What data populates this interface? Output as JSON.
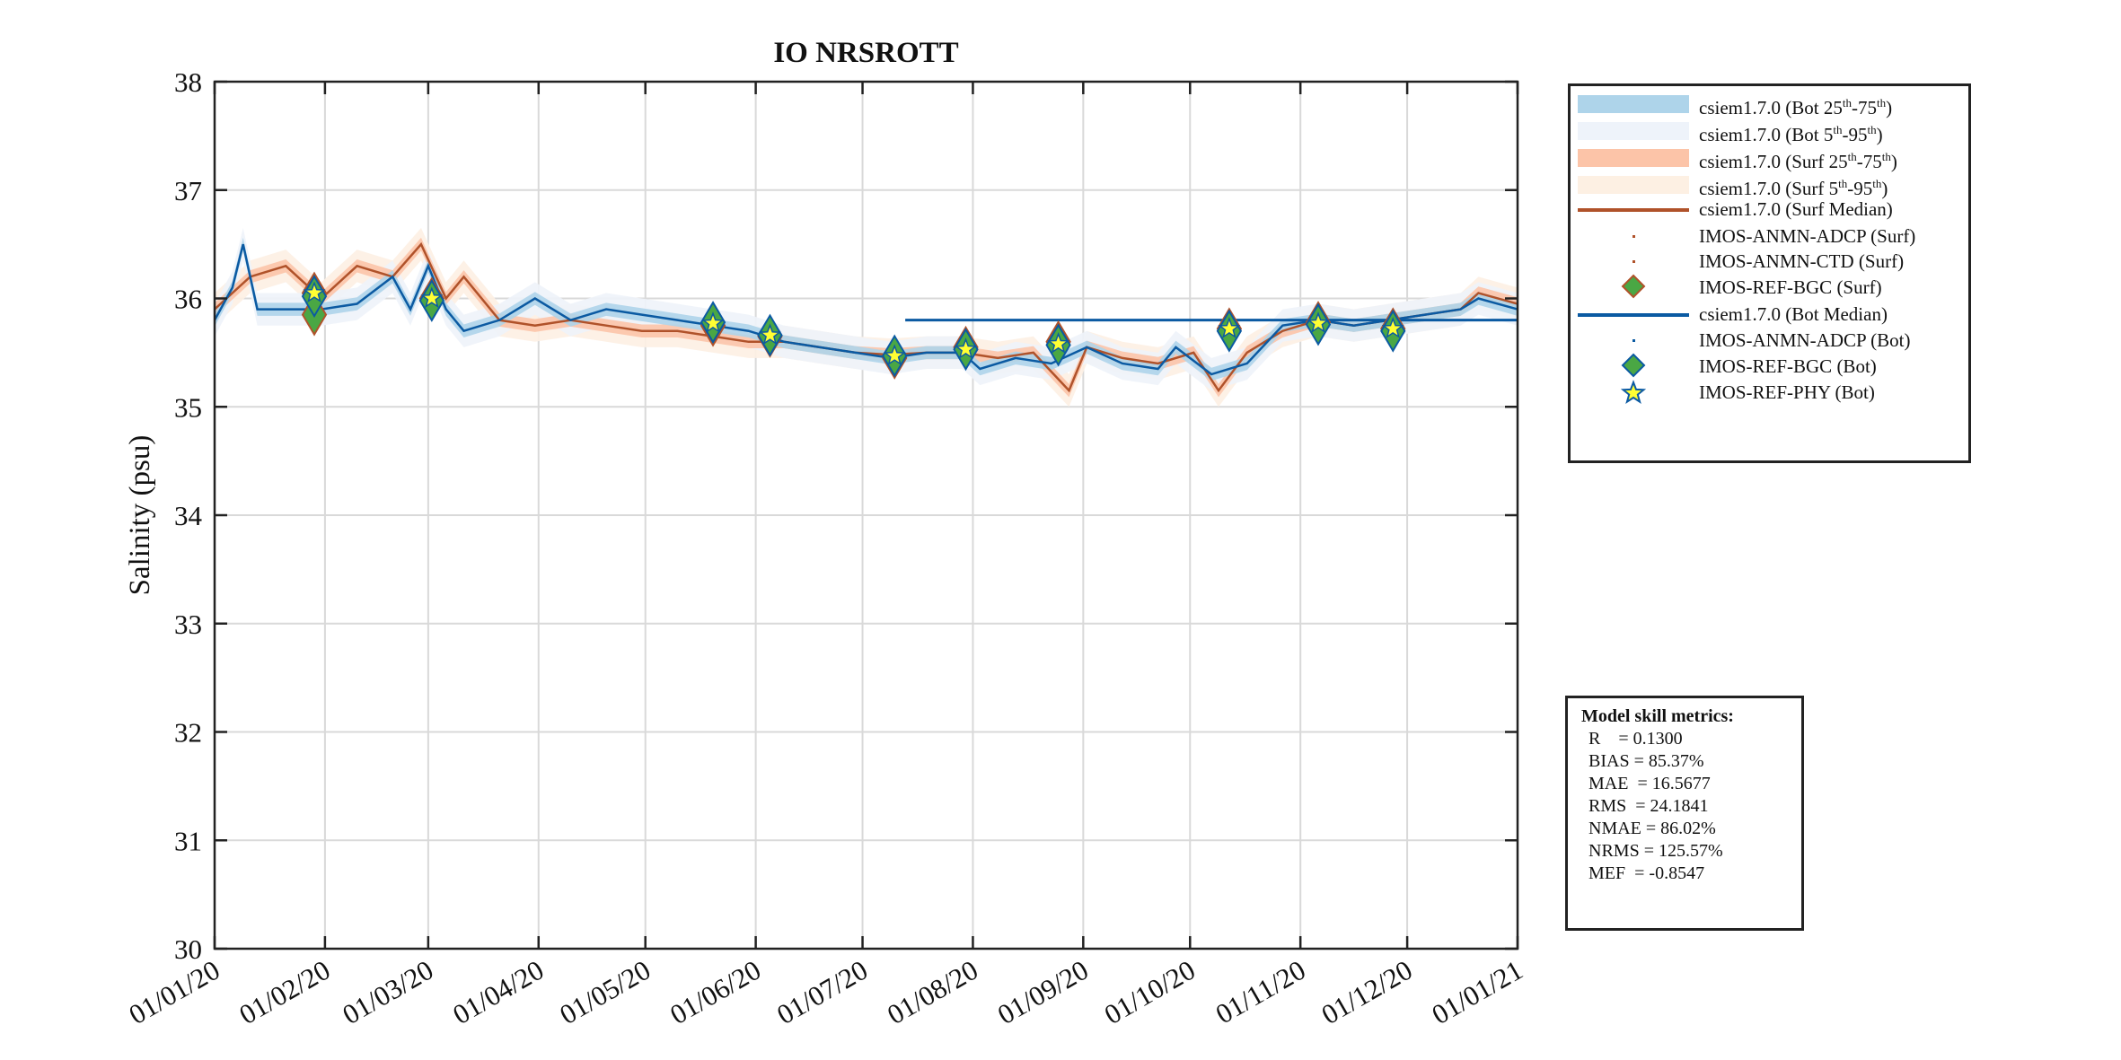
{
  "chart_data": {
    "type": "line",
    "title": "IO NRSROTT",
    "xlabel": "",
    "ylabel": "Salinity (psu)",
    "ylim": [
      30,
      38
    ],
    "yticks": [
      "30",
      "31",
      "32",
      "33",
      "34",
      "35",
      "36",
      "37",
      "38"
    ],
    "xlim_days": [
      0,
      366
    ],
    "xticks": [
      "01/01/20",
      "01/02/20",
      "01/03/20",
      "01/04/20",
      "01/05/20",
      "01/06/20",
      "01/07/20",
      "01/08/20",
      "01/09/20",
      "01/10/20",
      "01/11/20",
      "01/12/20",
      "01/01/21"
    ],
    "xtick_days": [
      0,
      31,
      60,
      91,
      121,
      152,
      182,
      213,
      244,
      274,
      305,
      335,
      366
    ],
    "grid": true,
    "legend_placement": "outside-right",
    "colors": {
      "bot_median": "#0b5aa2",
      "surf_median": "#b0522a",
      "bot_25_75": "#aed4ea",
      "bot_5_95": "#eef3fa",
      "surf_25_75": "#fcc4a8",
      "surf_5_95": "#fdf0e3",
      "marker_fill": "#4aa744",
      "star_fill": "#ffff33"
    },
    "series": [
      {
        "name": "csiem1.7.0 (Bot Median)",
        "x": [
          0,
          5,
          8,
          12,
          20,
          30,
          40,
          50,
          55,
          60,
          65,
          70,
          80,
          90,
          100,
          110,
          120,
          130,
          140,
          150,
          160,
          170,
          180,
          190,
          200,
          210,
          215,
          225,
          235,
          245,
          255,
          265,
          270,
          280,
          290,
          300,
          310,
          320,
          330,
          340,
          350,
          355,
          366
        ],
        "y": [
          35.8,
          36.1,
          36.5,
          35.9,
          35.9,
          35.9,
          35.95,
          36.2,
          35.9,
          36.3,
          35.9,
          35.7,
          35.8,
          36.0,
          35.8,
          35.9,
          35.85,
          35.8,
          35.75,
          35.7,
          35.6,
          35.55,
          35.5,
          35.45,
          35.5,
          35.5,
          35.35,
          35.45,
          35.4,
          35.55,
          35.4,
          35.35,
          35.55,
          35.3,
          35.4,
          35.75,
          35.8,
          35.75,
          35.8,
          35.85,
          35.9,
          36.0,
          35.9
        ]
      },
      {
        "name": "csiem1.7.0 (Surf Median)",
        "x": [
          0,
          10,
          20,
          30,
          40,
          50,
          58,
          65,
          70,
          80,
          90,
          100,
          110,
          120,
          130,
          140,
          150,
          160,
          170,
          180,
          190,
          200,
          210,
          220,
          230,
          240,
          245,
          255,
          265,
          275,
          282,
          290,
          300,
          310,
          320,
          330,
          340,
          350,
          355,
          366
        ],
        "y": [
          35.9,
          36.2,
          36.3,
          36.0,
          36.3,
          36.2,
          36.5,
          36.0,
          36.2,
          35.8,
          35.75,
          35.8,
          35.75,
          35.7,
          35.7,
          35.65,
          35.6,
          35.6,
          35.55,
          35.5,
          35.48,
          35.5,
          35.5,
          35.45,
          35.5,
          35.15,
          35.55,
          35.45,
          35.4,
          35.5,
          35.15,
          35.5,
          35.7,
          35.8,
          35.75,
          35.8,
          35.85,
          35.9,
          36.05,
          35.95
        ]
      }
    ],
    "bot_median_flat_segment": {
      "x": [
        194,
        366
      ],
      "y": 35.8
    },
    "markers": {
      "IMOS-REF-BGC (Surf)": {
        "x": [
          28,
          28,
          61,
          140,
          156,
          191,
          211,
          237,
          285,
          310,
          331
        ],
        "y": [
          36.05,
          35.85,
          36.0,
          35.75,
          35.65,
          35.45,
          35.55,
          35.6,
          35.72,
          35.78,
          35.72
        ]
      },
      "IMOS-REF-BGC (Bot)": {
        "x": [
          28,
          61,
          140,
          156,
          191,
          211,
          237,
          285,
          310,
          331
        ],
        "y": [
          36.02,
          35.98,
          35.78,
          35.66,
          35.47,
          35.53,
          35.57,
          35.7,
          35.76,
          35.7
        ]
      },
      "IMOS-REF-PHY (Bot)": {
        "x": [
          28,
          61,
          140,
          156,
          191,
          211,
          237,
          285,
          310,
          331
        ],
        "y": [
          36.05,
          36.0,
          35.77,
          35.66,
          35.47,
          35.53,
          35.58,
          35.72,
          35.77,
          35.72
        ]
      }
    },
    "legend": [
      {
        "type": "band",
        "color": "#aed4ea",
        "pre": "csiem1.7.0 (Bot 25",
        "s1": "th",
        "mid": "-75",
        "s2": "th",
        "post": ")"
      },
      {
        "type": "band",
        "color": "#eef3fa",
        "pre": "csiem1.7.0 (Bot 5",
        "s1": "th",
        "mid": "-95",
        "s2": "th",
        "post": ")"
      },
      {
        "type": "band",
        "color": "#fcc4a8",
        "pre": "csiem1.7.0 (Surf 25",
        "s1": "th",
        "mid": "-75",
        "s2": "th",
        "post": ")"
      },
      {
        "type": "band",
        "color": "#fdf0e3",
        "pre": "csiem1.7.0 (Surf 5",
        "s1": "th",
        "mid": "-95",
        "s2": "th",
        "post": ")"
      },
      {
        "type": "line",
        "color": "#b0522a",
        "pre": "csiem1.7.0 (Surf Median)"
      },
      {
        "type": "dot",
        "color": "#b0522a",
        "pre": "IMOS-ANMN-ADCP (Surf)"
      },
      {
        "type": "dot",
        "color": "#b0522a",
        "pre": "IMOS-ANMN-CTD (Surf)"
      },
      {
        "type": "diamond",
        "color": "#b0522a",
        "pre": "IMOS-REF-BGC (Surf)"
      },
      {
        "type": "line",
        "color": "#0b5aa2",
        "pre": "csiem1.7.0 (Bot Median)"
      },
      {
        "type": "dot",
        "color": "#0b5aa2",
        "pre": "IMOS-ANMN-ADCP (Bot)"
      },
      {
        "type": "diamond",
        "color": "#0b5aa2",
        "pre": "IMOS-REF-BGC (Bot)"
      },
      {
        "type": "star",
        "color": "#0b5aa2",
        "pre": "IMOS-REF-PHY (Bot)"
      }
    ]
  },
  "metrics": {
    "title": "Model skill metrics:",
    "rows": [
      "R    = 0.1300",
      "BIAS = 85.37%",
      "MAE  = 16.5677",
      "RMS  = 24.1841",
      "NMAE = 86.02%",
      "NRMS = 125.57%",
      "MEF  = -0.8547"
    ]
  }
}
